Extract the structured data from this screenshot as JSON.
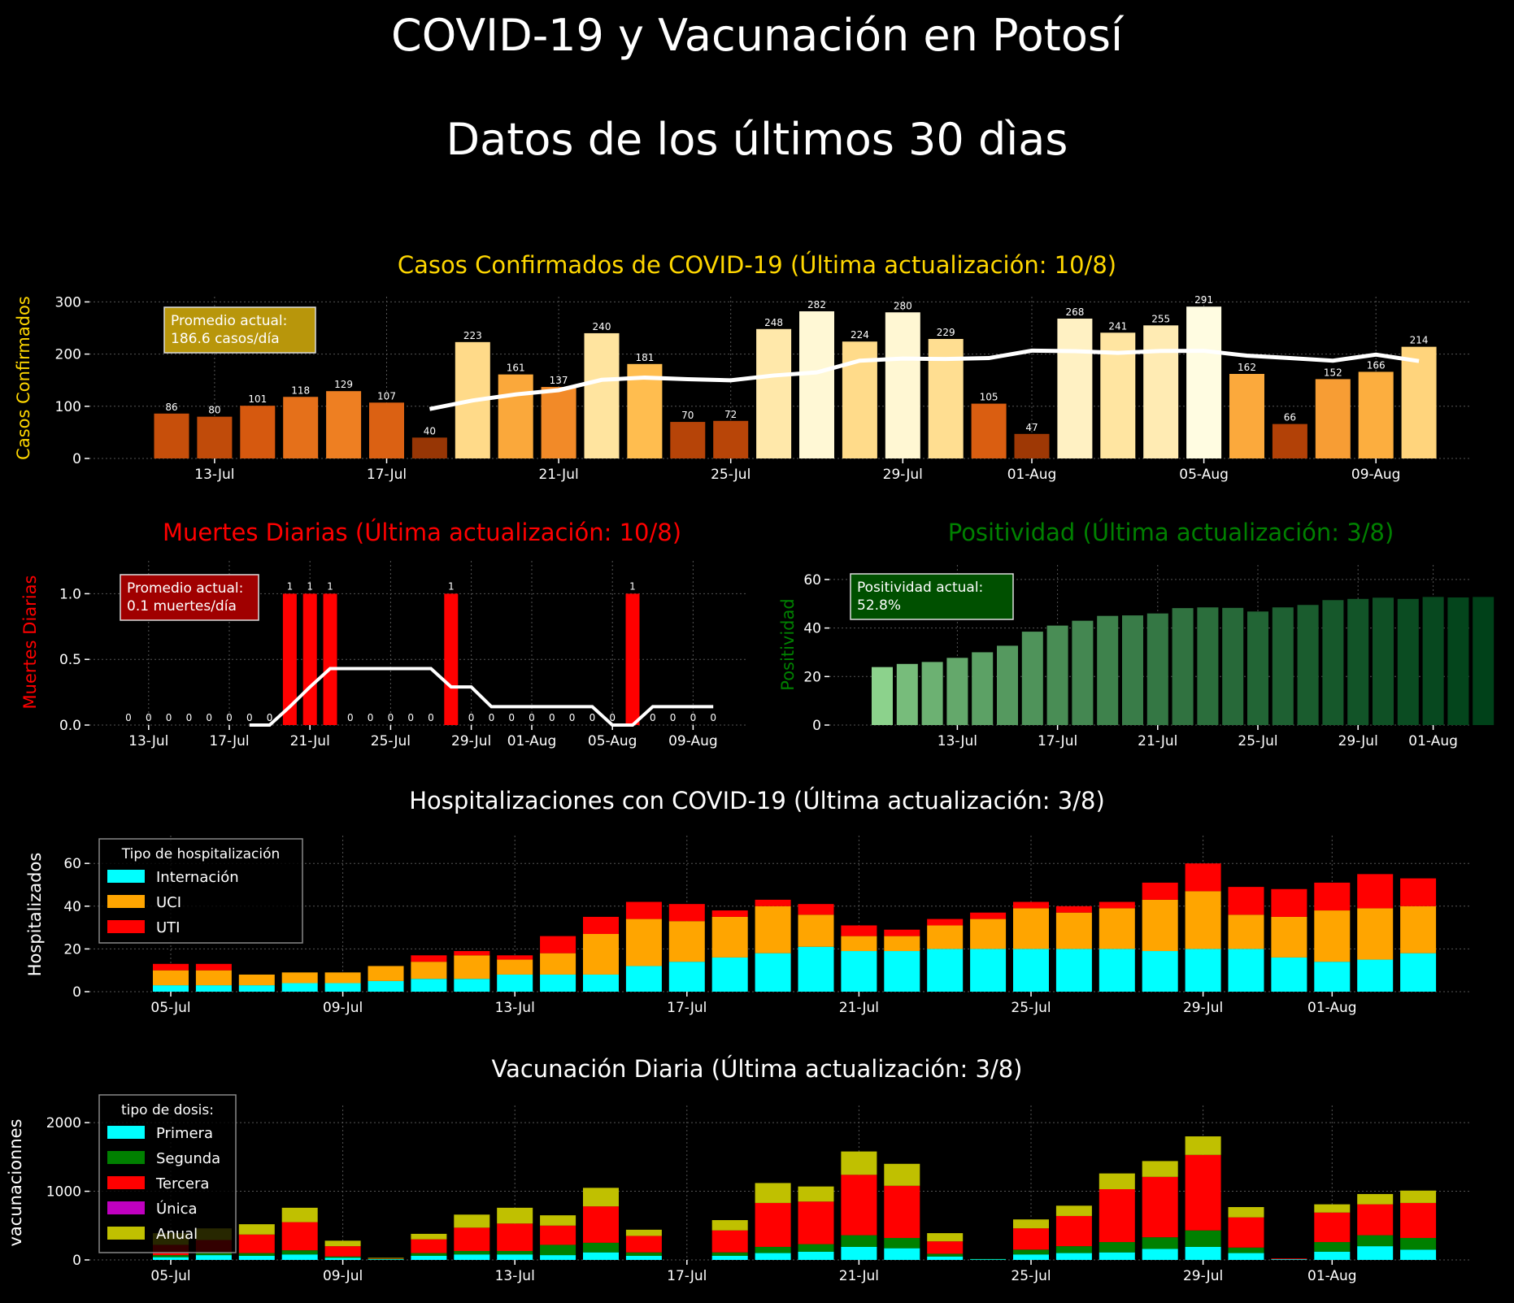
{
  "page": {
    "title_line1": "COVID-19  y Vacunación en Potosí",
    "title_line2": "Datos de los últimos 30 dìas",
    "background": "#000000"
  },
  "chart_data": [
    {
      "id": "cases",
      "type": "bar",
      "title": "Casos Confirmados de COVID-19 (Última actualización: 10/8)",
      "ylabel": "Casos Confirmados",
      "xlabel": "",
      "title_color": "#ffd700",
      "ylim": [
        0,
        310
      ],
      "yticks": [
        0,
        100,
        200,
        300
      ],
      "x_ticks": [
        "13-Jul",
        "17-Jul",
        "21-Jul",
        "25-Jul",
        "29-Jul",
        "01-Aug",
        "05-Aug",
        "09-Aug"
      ],
      "categories": [
        "12-Jul",
        "13-Jul",
        "14-Jul",
        "15-Jul",
        "16-Jul",
        "17-Jul",
        "18-Jul",
        "19-Jul",
        "20-Jul",
        "21-Jul",
        "22-Jul",
        "23-Jul",
        "24-Jul",
        "25-Jul",
        "26-Jul",
        "27-Jul",
        "28-Jul",
        "29-Jul",
        "30-Jul",
        "31-Jul",
        "01-Aug",
        "02-Aug",
        "03-Aug",
        "04-Aug",
        "05-Aug",
        "06-Aug",
        "07-Aug",
        "08-Aug",
        "09-Aug",
        "10-Aug"
      ],
      "values": [
        86,
        80,
        101,
        118,
        129,
        107,
        40,
        223,
        161,
        137,
        240,
        181,
        70,
        72,
        248,
        282,
        224,
        280,
        229,
        105,
        47,
        268,
        241,
        255,
        291,
        162,
        66,
        152,
        166,
        214
      ],
      "moving_average": [
        null,
        null,
        null,
        null,
        null,
        null,
        94.7,
        111.1,
        122.7,
        130.9,
        150.7,
        154.9,
        151.9,
        149.7,
        159.0,
        164.9,
        187.3,
        191.4,
        190.6,
        192.3,
        206.6,
        205.7,
        202.4,
        206.0,
        206.3,
        197.0,
        192.4,
        187.4,
        198.9,
        186.6
      ],
      "annotation": "Promedio actual:\n186.6 casos/día",
      "annotation_bg": "#b8960b",
      "grid": true
    },
    {
      "id": "deaths",
      "type": "bar",
      "title": "Muertes Diarias (Última actualización: 10/8)",
      "ylabel": "Muertes Diarias",
      "xlabel": "",
      "title_color": "#ff0000",
      "ylim": [
        0,
        1.25
      ],
      "yticks": [
        "0.0",
        "0.5",
        "1.0"
      ],
      "x_ticks": [
        "13-Jul",
        "17-Jul",
        "21-Jul",
        "25-Jul",
        "29-Jul",
        "01-Aug",
        "05-Aug",
        "09-Aug"
      ],
      "categories": [
        "12-Jul",
        "13-Jul",
        "14-Jul",
        "15-Jul",
        "16-Jul",
        "17-Jul",
        "18-Jul",
        "19-Jul",
        "20-Jul",
        "21-Jul",
        "22-Jul",
        "23-Jul",
        "24-Jul",
        "25-Jul",
        "26-Jul",
        "27-Jul",
        "28-Jul",
        "29-Jul",
        "30-Jul",
        "31-Jul",
        "01-Aug",
        "02-Aug",
        "03-Aug",
        "04-Aug",
        "05-Aug",
        "06-Aug",
        "07-Aug",
        "08-Aug",
        "09-Aug",
        "10-Aug"
      ],
      "values": [
        0,
        0,
        0,
        0,
        0,
        0,
        0,
        0,
        1,
        1,
        1,
        0,
        0,
        0,
        0,
        0,
        1,
        0,
        0,
        0,
        0,
        0,
        0,
        0,
        0,
        1,
        0,
        0,
        0,
        0
      ],
      "moving_average": [
        null,
        null,
        null,
        null,
        null,
        null,
        0,
        0,
        0.14,
        0.29,
        0.43,
        0.43,
        0.43,
        0.43,
        0.43,
        0.43,
        0.29,
        0.29,
        0.14,
        0.14,
        0.14,
        0.14,
        0.14,
        0.14,
        0,
        0,
        0.14,
        0.14,
        0.14,
        0.14
      ],
      "annotation": "Promedio actual:\n0.1 muertes/día",
      "annotation_bg": "#a00000",
      "grid": true
    },
    {
      "id": "positivity",
      "type": "bar",
      "title": "Positividad (Última actualización: 3/8)",
      "ylabel": "Positividad",
      "xlabel": "",
      "title_color": "#008000",
      "ylim": [
        0,
        66
      ],
      "yticks": [
        0,
        20,
        40,
        60
      ],
      "x_ticks": [
        "13-Jul",
        "17-Jul",
        "21-Jul",
        "25-Jul",
        "29-Jul",
        "01-Aug"
      ],
      "categories": [
        "10-Jul",
        "11-Jul",
        "12-Jul",
        "13-Jul",
        "14-Jul",
        "15-Jul",
        "16-Jul",
        "17-Jul",
        "18-Jul",
        "19-Jul",
        "20-Jul",
        "21-Jul",
        "22-Jul",
        "23-Jul",
        "24-Jul",
        "25-Jul",
        "26-Jul",
        "27-Jul",
        "28-Jul",
        "29-Jul",
        "30-Jul",
        "31-Jul",
        "01-Aug",
        "02-Aug",
        "03-Aug"
      ],
      "values": [
        23.9,
        25.2,
        26.0,
        27.7,
        30.0,
        32.7,
        38.5,
        41.0,
        43.0,
        45.0,
        45.2,
        46.0,
        48.2,
        48.5,
        48.3,
        46.8,
        48.5,
        49.5,
        51.5,
        52.0,
        52.5,
        52.0,
        52.8,
        52.6,
        52.8
      ],
      "annotation": "Positividad actual:\n52.8%",
      "annotation_bg": "#005000",
      "grid": true
    },
    {
      "id": "hosp",
      "type": "bar",
      "stacked": true,
      "title": "Hospitalizaciones con COVID-19 (Última actualización: 3/8)",
      "ylabel": "Hospitalizados",
      "xlabel": "",
      "title_color": "#ffffff",
      "ylim": [
        0,
        73
      ],
      "yticks": [
        0,
        20,
        40,
        60
      ],
      "x_ticks": [
        "05-Jul",
        "09-Jul",
        "13-Jul",
        "17-Jul",
        "21-Jul",
        "25-Jul",
        "29-Jul",
        "01-Aug"
      ],
      "legend_title": "Tipo de hospitalización",
      "legend_position": "top-left",
      "categories": [
        "05-Jul",
        "06-Jul",
        "07-Jul",
        "08-Jul",
        "09-Jul",
        "10-Jul",
        "11-Jul",
        "12-Jul",
        "13-Jul",
        "14-Jul",
        "15-Jul",
        "16-Jul",
        "17-Jul",
        "18-Jul",
        "19-Jul",
        "20-Jul",
        "21-Jul",
        "22-Jul",
        "23-Jul",
        "24-Jul",
        "25-Jul",
        "26-Jul",
        "27-Jul",
        "28-Jul",
        "29-Jul",
        "30-Jul",
        "31-Jul",
        "01-Aug",
        "02-Aug",
        "03-Aug"
      ],
      "series": [
        {
          "name": "Internación",
          "color": "#00ffff",
          "values": [
            3,
            3,
            3,
            4,
            4,
            5,
            6,
            6,
            8,
            8,
            8,
            12,
            14,
            16,
            18,
            21,
            19,
            19,
            20,
            20,
            20,
            20,
            20,
            19,
            20,
            20,
            16,
            14,
            15,
            18
          ]
        },
        {
          "name": "UCI",
          "color": "#ffa500",
          "values": [
            7,
            7,
            5,
            5,
            5,
            7,
            8,
            11,
            7,
            10,
            19,
            22,
            19,
            19,
            22,
            15,
            7,
            7,
            11,
            14,
            19,
            17,
            19,
            24,
            27,
            16,
            19,
            24,
            24,
            22
          ]
        },
        {
          "name": "UTI",
          "color": "#ff0000",
          "values": [
            3,
            3,
            0,
            0,
            0,
            0,
            3,
            2,
            2,
            8,
            8,
            8,
            8,
            3,
            3,
            5,
            5,
            3,
            3,
            3,
            3,
            3,
            3,
            8,
            13,
            13,
            13,
            13,
            16,
            13
          ]
        }
      ],
      "grid": true
    },
    {
      "id": "vacc",
      "type": "bar",
      "stacked": true,
      "title": "Vacunación Diaria (Última actualización: 3/8)",
      "ylabel": "vacunacionnes",
      "xlabel": "",
      "title_color": "#ffffff",
      "ylim": [
        0,
        2250
      ],
      "yticks": [
        0,
        1000,
        2000
      ],
      "x_ticks": [
        "05-Jul",
        "09-Jul",
        "13-Jul",
        "17-Jul",
        "21-Jul",
        "25-Jul",
        "29-Jul",
        "01-Aug"
      ],
      "legend_title": "tipo de dosis:",
      "legend_position": "top-left",
      "categories": [
        "05-Jul",
        "06-Jul",
        "07-Jul",
        "08-Jul",
        "09-Jul",
        "10-Jul",
        "11-Jul",
        "12-Jul",
        "13-Jul",
        "14-Jul",
        "15-Jul",
        "16-Jul",
        "17-Jul",
        "18-Jul",
        "19-Jul",
        "20-Jul",
        "21-Jul",
        "22-Jul",
        "23-Jul",
        "24-Jul",
        "25-Jul",
        "26-Jul",
        "27-Jul",
        "28-Jul",
        "29-Jul",
        "30-Jul",
        "31-Jul",
        "01-Aug",
        "02-Aug",
        "03-Aug"
      ],
      "series": [
        {
          "name": "Primera",
          "color": "#00ffff",
          "values": [
            40,
            70,
            60,
            80,
            30,
            10,
            60,
            80,
            80,
            70,
            110,
            60,
            0,
            60,
            100,
            120,
            190,
            170,
            50,
            10,
            80,
            100,
            110,
            160,
            190,
            100,
            10,
            120,
            200,
            150
          ]
        },
        {
          "name": "Segunda",
          "color": "#008000",
          "values": [
            30,
            50,
            40,
            60,
            20,
            5,
            40,
            50,
            50,
            150,
            140,
            50,
            0,
            50,
            90,
            110,
            170,
            150,
            40,
            5,
            70,
            100,
            150,
            170,
            240,
            80,
            0,
            140,
            160,
            170
          ]
        },
        {
          "name": "Tercera",
          "color": "#ff0000",
          "values": [
            150,
            170,
            270,
            410,
            150,
            5,
            200,
            340,
            400,
            280,
            530,
            240,
            0,
            320,
            640,
            620,
            880,
            760,
            180,
            0,
            310,
            440,
            770,
            880,
            1100,
            440,
            10,
            430,
            450,
            510
          ]
        },
        {
          "name": "Única",
          "color": "#c000c0",
          "values": [
            0,
            0,
            0,
            0,
            0,
            0,
            0,
            0,
            0,
            0,
            0,
            0,
            0,
            0,
            0,
            0,
            0,
            0,
            0,
            0,
            0,
            0,
            0,
            0,
            0,
            0,
            0,
            0,
            0,
            0
          ]
        },
        {
          "name": "Anual",
          "color": "#c0c000",
          "values": [
            170,
            170,
            150,
            210,
            80,
            10,
            80,
            190,
            230,
            150,
            270,
            90,
            0,
            150,
            290,
            220,
            340,
            320,
            120,
            0,
            130,
            150,
            230,
            230,
            270,
            150,
            0,
            120,
            150,
            180
          ]
        }
      ],
      "grid": true
    }
  ]
}
